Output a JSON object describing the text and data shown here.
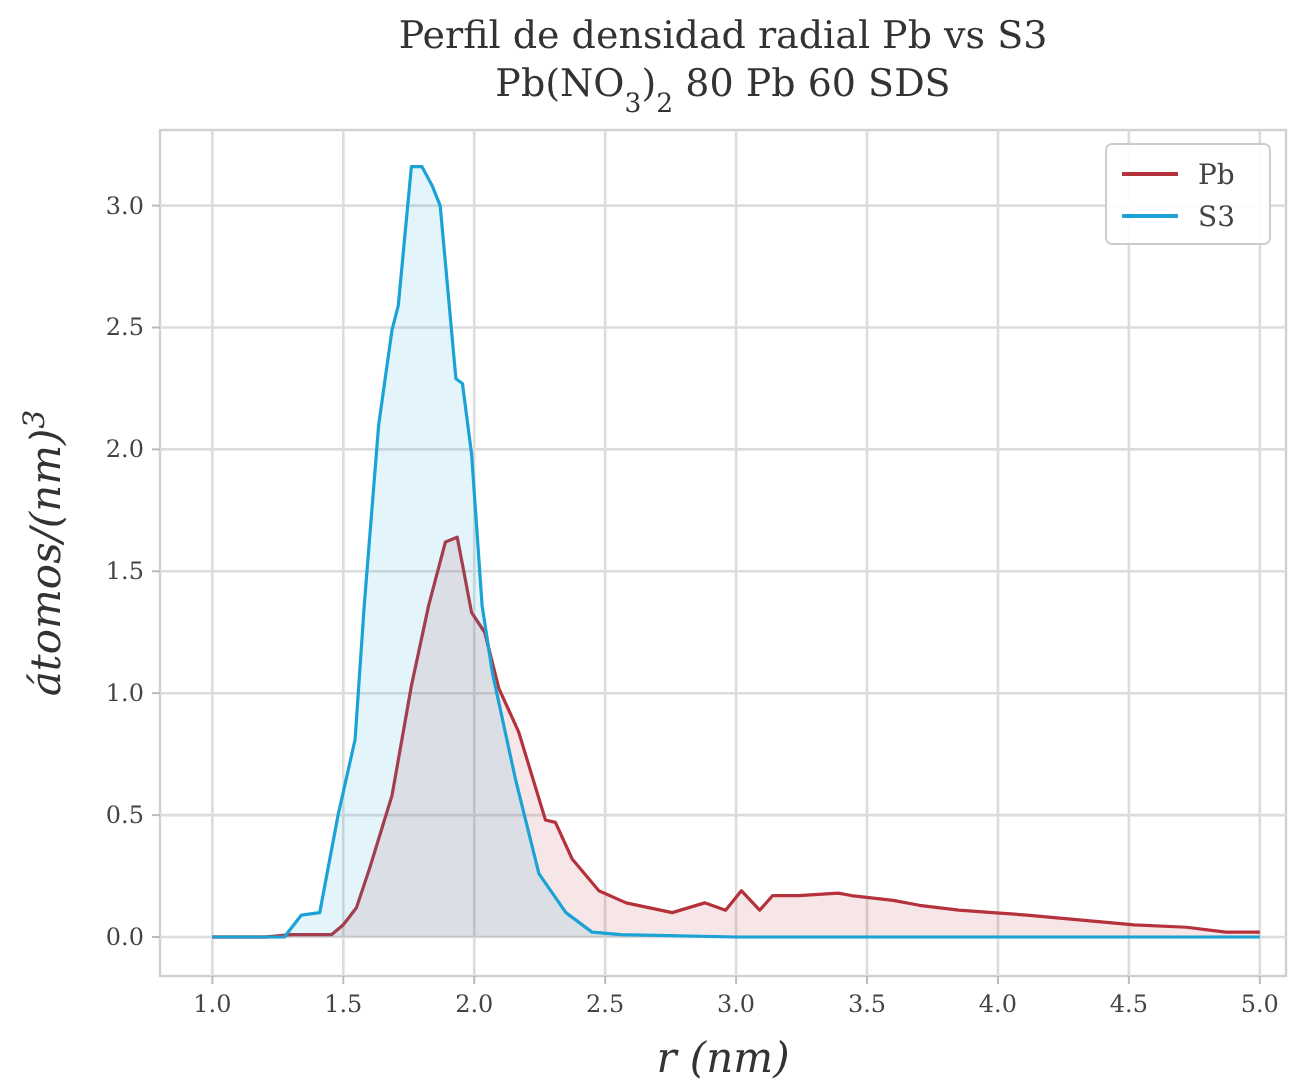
{
  "chart_data": {
    "type": "area",
    "title": "Perfil de densidad radial Pb vs S3",
    "subtitle": "Pb(NO$_{3}$)$_{2}$ 80 Pb 60 SDS",
    "xlabel": "r (nm)",
    "ylabel": "átomos/(nm)$^{3}$",
    "xlim": [
      0.8,
      5.1
    ],
    "ylim": [
      -0.16,
      3.31
    ],
    "xticks": [
      {
        "value": 1,
        "label": "1.0"
      },
      1.5,
      {
        "value": 2,
        "label": "2.0"
      },
      2.5,
      {
        "value": 3,
        "label": "3.0"
      },
      3.5,
      {
        "value": 4,
        "label": "4.0"
      },
      4.5,
      {
        "value": 5,
        "label": "5.0"
      }
    ],
    "yticks": [
      {
        "value": 0,
        "label": "0.0"
      },
      0.5,
      {
        "value": 1,
        "label": "1.0"
      },
      1.5,
      {
        "value": 2,
        "label": "2.0"
      },
      2.5,
      {
        "value": 3,
        "label": "3.0"
      }
    ],
    "grid": true,
    "legend": "top right",
    "line_style": "solid",
    "series": [
      {
        "name": "Pb",
        "color": "#b5323c",
        "x": [
          1.0,
          1.2,
          1.3,
          1.456,
          1.5,
          1.55,
          1.6,
          1.686,
          1.76,
          1.826,
          1.89,
          1.935,
          1.96,
          1.99,
          2.04,
          2.094,
          2.17,
          2.272,
          2.31,
          2.374,
          2.476,
          2.58,
          2.756,
          2.88,
          2.96,
          3.02,
          3.09,
          3.14,
          3.24,
          3.39,
          3.44,
          3.6,
          3.7,
          3.85,
          3.98,
          4.11,
          4.31,
          4.52,
          4.72,
          4.87,
          5.0
        ],
        "values": [
          0,
          0,
          0.01,
          0.01,
          0.05,
          0.12,
          0.28,
          0.58,
          1.03,
          1.36,
          1.62,
          1.64,
          1.5,
          1.33,
          1.25,
          1.02,
          0.84,
          0.48,
          0.47,
          0.32,
          0.19,
          0.14,
          0.1,
          0.14,
          0.11,
          0.19,
          0.11,
          0.17,
          0.17,
          0.18,
          0.17,
          0.15,
          0.13,
          0.11,
          0.1,
          0.09,
          0.07,
          0.05,
          0.04,
          0.02,
          0.02
        ]
      },
      {
        "name": "S3",
        "color": "#1aa3d4",
        "x": [
          1.0,
          1.275,
          1.34,
          1.41,
          1.48,
          1.545,
          1.58,
          1.635,
          1.686,
          1.71,
          1.76,
          1.8,
          1.84,
          1.87,
          1.93,
          1.955,
          1.99,
          2.03,
          2.07,
          2.157,
          2.247,
          2.35,
          2.45,
          2.56,
          3.0,
          4.0,
          5.0
        ],
        "values": [
          0,
          0,
          0.09,
          0.1,
          0.5,
          0.81,
          1.36,
          2.1,
          2.49,
          2.59,
          3.16,
          3.16,
          3.08,
          3.0,
          2.29,
          2.27,
          1.98,
          1.36,
          1.08,
          0.65,
          0.26,
          0.1,
          0.02,
          0.01,
          0,
          0,
          0
        ]
      }
    ]
  }
}
